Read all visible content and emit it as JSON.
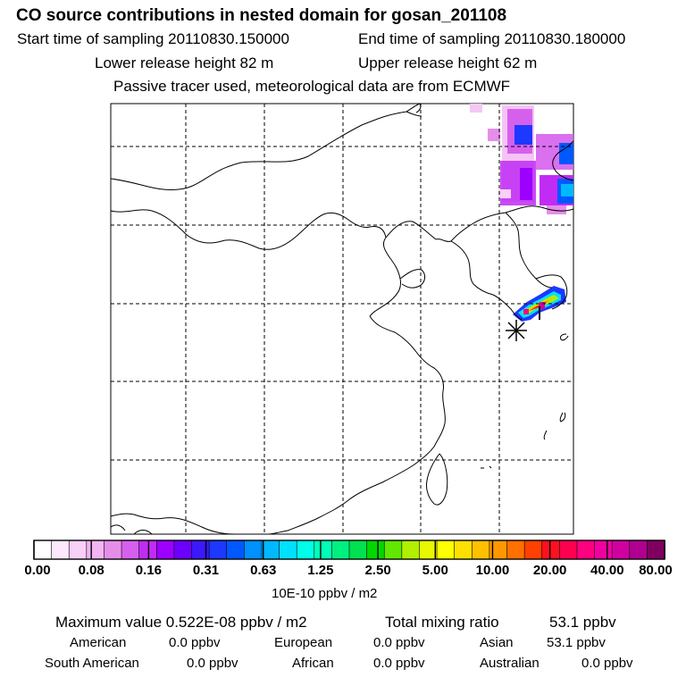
{
  "header": {
    "title": "CO  source contributions in nested domain for gosan_201108",
    "start_sampling": "Start time of sampling 20110830.150000",
    "end_sampling": "End time of sampling 20110830.180000",
    "lower_release": "Lower release height   82 m",
    "upper_release": "Upper release height   62 m",
    "tracer_note": "Passive tracer used, meteorological data are from ECMWF"
  },
  "colorbar": {
    "tick_labels": [
      "0.00",
      "0.08",
      "0.16",
      "0.31",
      "0.63",
      "1.25",
      "2.50",
      "5.00",
      "10.00",
      "20.00",
      "40.00",
      "80.00"
    ],
    "unit_label": "10E-10 ppbv / m2",
    "colors": [
      "#ffffff",
      "#fde8fd",
      "#f8d0f8",
      "#f2b4f2",
      "#e58ee9",
      "#d660ee",
      "#c02cf4",
      "#9c00ff",
      "#6c00ff",
      "#3c18ff",
      "#1d38ff",
      "#0058ff",
      "#0090ff",
      "#00b8ff",
      "#00e0ff",
      "#00ffe8",
      "#00ffb8",
      "#00f080",
      "#00e050",
      "#00d800",
      "#60e800",
      "#b0f000",
      "#e8f800",
      "#ffff00",
      "#ffe000",
      "#ffc000",
      "#ff9800",
      "#ff7000",
      "#ff4000",
      "#ff1020",
      "#ff0050",
      "#ff0080",
      "#f000a0",
      "#d000a0",
      "#b00090",
      "#800060"
    ]
  },
  "stats": {
    "maximum_value": "Maximum value  0.522E-08 ppbv / m2",
    "total_mixing": "Total mixing ratio",
    "total_mixing_value": "53.1 ppbv",
    "american": "American",
    "american_value": "0.0 ppbv",
    "european": "European",
    "european_value": "0.0 ppbv",
    "asian": "Asian",
    "asian_value": "53.1 ppbv",
    "south_american": "South American",
    "south_american_value": "0.0 ppbv",
    "african": "African",
    "african_value": "0.0 ppbv",
    "australian": "Australian",
    "australian_value": "0.0 ppbv"
  },
  "map": {
    "receptor_marker": "receptor-star-icon"
  }
}
